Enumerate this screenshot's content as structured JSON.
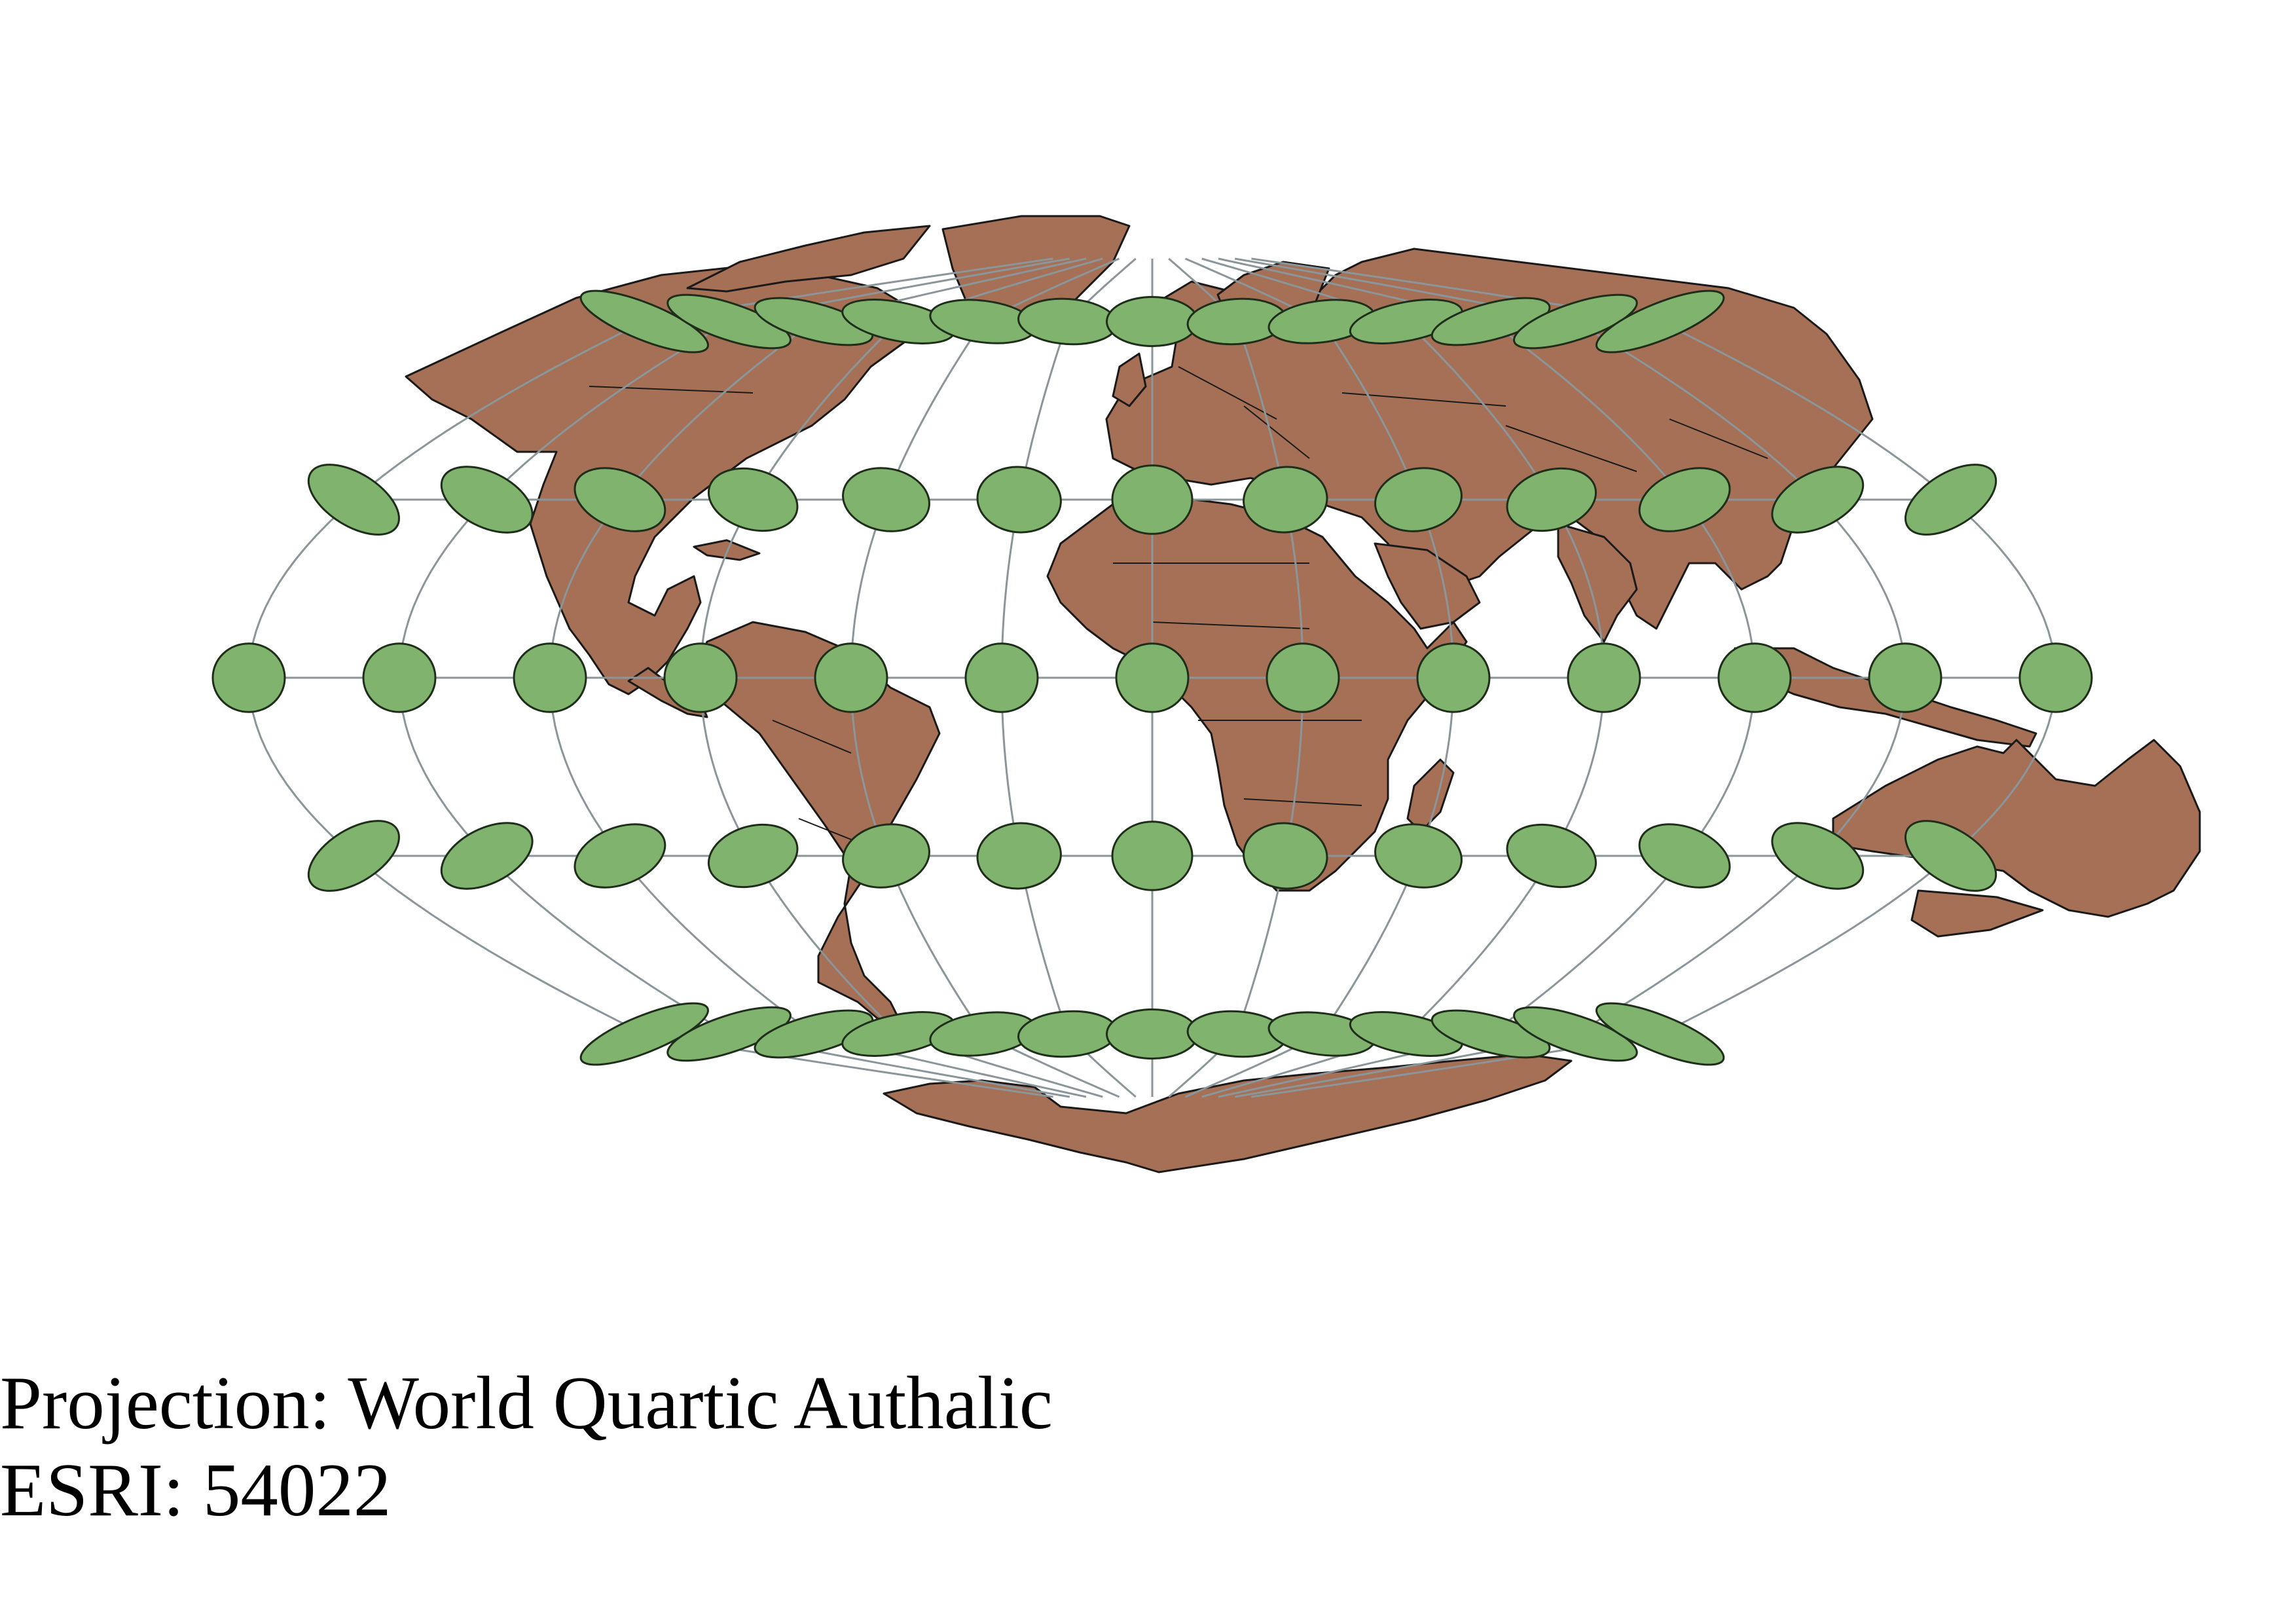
{
  "caption": {
    "projection": "Projection: World Quartic Authalic",
    "code": "ESRI: 54022"
  },
  "map": {
    "projection": "Quartic Authalic",
    "graticule_step_degrees": 30,
    "indicatrix_latitudes": [
      60,
      30,
      0,
      -30,
      -60
    ],
    "indicatrix_longitudes": [
      -180,
      -150,
      -120,
      -90,
      -60,
      -30,
      0,
      30,
      60,
      90,
      120,
      150,
      180
    ],
    "layers": [
      "land",
      "country-borders",
      "graticule",
      "tissot-indicatrix"
    ]
  },
  "colors": {
    "land": "#a67056",
    "land_stroke": "#1a1a1a",
    "indicatrix": "#80b36e",
    "indicatrix_stroke": "#1f2e1a",
    "graticule": "#8a969a",
    "background": "#ffffff",
    "text": "#000000"
  }
}
